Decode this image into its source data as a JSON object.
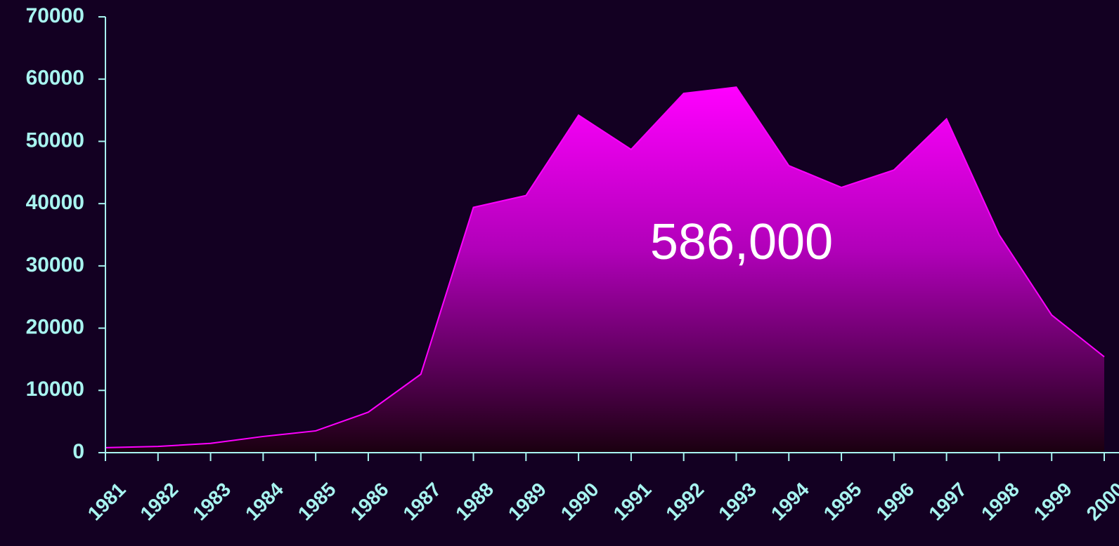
{
  "chart_data": {
    "type": "area",
    "categories": [
      "1981",
      "1982",
      "1983",
      "1984",
      "1985",
      "1986",
      "1987",
      "1988",
      "1989",
      "1990",
      "1991",
      "1992",
      "1993",
      "1994",
      "1995",
      "1996",
      "1997",
      "1998",
      "1999",
      "2000"
    ],
    "values": [
      800,
      1000,
      1500,
      2600,
      3500,
      6500,
      12600,
      39400,
      41300,
      54200,
      48700,
      57700,
      58700,
      46100,
      42600,
      45400,
      53600,
      35000,
      22100,
      15400
    ],
    "color": "#ff00ff",
    "ylim": [
      0,
      70000
    ],
    "yticks": [
      0,
      10000,
      20000,
      30000,
      40000,
      50000,
      60000,
      70000
    ],
    "annotation": "586,000"
  }
}
